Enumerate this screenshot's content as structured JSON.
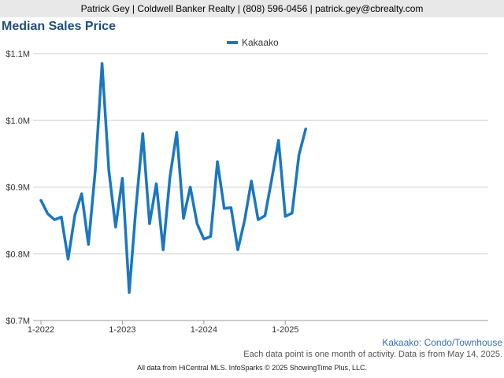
{
  "header": {
    "contact": "Patrick Gey | Coldwell Banker Realty | (808) 596-0456 | patrick.gey@cbrealty.com"
  },
  "notes": {
    "subtitle": "Kakaako: Condo/Townhouse",
    "description": "Each data point is one month of activity. Data is from May 14, 2025."
  },
  "footer": {
    "text": "All data from HiCentral MLS. InfoSparks © 2025 ShowingTime Plus, LLC."
  },
  "colors": {
    "series": "#1a77c0",
    "title": "#1f4e79",
    "grid": "#cccccc"
  },
  "chart_data": {
    "type": "line",
    "title": "Median Sales Price",
    "legend_position": "top-center",
    "grid": true,
    "ylim": [
      700000,
      1100000
    ],
    "y_ticks": [
      {
        "value": 700000,
        "label": "$0.7M"
      },
      {
        "value": 800000,
        "label": "$0.8M"
      },
      {
        "value": 900000,
        "label": "$0.9M"
      },
      {
        "value": 1000000,
        "label": "$1.0M"
      },
      {
        "value": 1100000,
        "label": "$1.1M"
      }
    ],
    "x_ticks": [
      {
        "value": "2022-01",
        "label": "1-2022"
      },
      {
        "value": "2023-01",
        "label": "1-2023"
      },
      {
        "value": "2024-01",
        "label": "1-2024"
      },
      {
        "value": "2025-01",
        "label": "1-2025"
      }
    ],
    "x": [
      "2022-01",
      "2022-02",
      "2022-03",
      "2022-04",
      "2022-05",
      "2022-06",
      "2022-07",
      "2022-08",
      "2022-09",
      "2022-10",
      "2022-11",
      "2022-12",
      "2023-01",
      "2023-02",
      "2023-03",
      "2023-04",
      "2023-05",
      "2023-06",
      "2023-07",
      "2023-08",
      "2023-09",
      "2023-10",
      "2023-11",
      "2023-12",
      "2024-01",
      "2024-02",
      "2024-03",
      "2024-04",
      "2024-05",
      "2024-06",
      "2024-07",
      "2024-08",
      "2024-09",
      "2024-10",
      "2024-11",
      "2024-12",
      "2025-01",
      "2025-02",
      "2025-03",
      "2025-04"
    ],
    "series": [
      {
        "name": "Kakaako",
        "values": [
          880000,
          860000,
          851000,
          855000,
          792000,
          858000,
          890000,
          814000,
          925000,
          1085000,
          925000,
          840000,
          913000,
          742000,
          870000,
          980000,
          845000,
          905000,
          806000,
          915000,
          982000,
          853000,
          900000,
          845000,
          822000,
          826000,
          938000,
          868000,
          869000,
          806000,
          850000,
          909000,
          851000,
          857000,
          912000,
          970000,
          856000,
          861000,
          948000,
          987000
        ]
      }
    ]
  }
}
